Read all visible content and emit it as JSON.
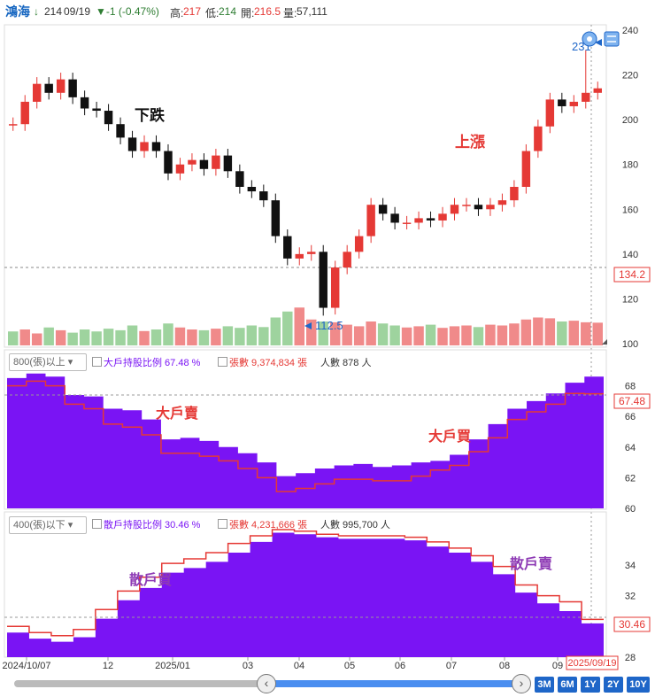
{
  "header": {
    "stock": "鴻海",
    "arrow": "↓",
    "price": "214",
    "date": "09/19",
    "change": "▼-1 (-0.47%)",
    "high_label": "高:",
    "high": "217",
    "low_label": "低:",
    "low": "214",
    "open_label": "開:",
    "open": "216.5",
    "vol_label": "量:",
    "volume": "57,111"
  },
  "annotations": {
    "down": "下跌",
    "up": "上漲",
    "big_sell": "大戶賣",
    "big_buy": "大戶買",
    "small_buy": "散戶買",
    "small_sell": "散戶賣"
  },
  "price_panel": {
    "high_marker": "231",
    "low_marker": "112.5",
    "ref_value": "134.2",
    "y_ticks": [
      "240",
      "220",
      "200",
      "180",
      "160",
      "140",
      "120",
      "100"
    ]
  },
  "big_panel": {
    "dropdown": "800(張)以上",
    "ratio_label": "大戶持股比例 67.48 %",
    "sheets_label": "張數 9,374,834 張",
    "people_label": "人數 878 人",
    "current": "67.48",
    "y_ticks": [
      "68",
      "66",
      "64",
      "62",
      "60"
    ]
  },
  "small_panel": {
    "dropdown": "400(張)以下",
    "ratio_label": "散戶持股比例 30.46 %",
    "sheets_label": "張數 4,231,666 張",
    "people_label": "人數 995,700 人",
    "current": "30.46",
    "y_ticks": [
      "34",
      "32",
      "30",
      "28"
    ]
  },
  "x_axis": {
    "ticks": [
      "2024/10/07",
      "12",
      "2025/01",
      "03",
      "04",
      "05",
      "06",
      "07",
      "08",
      "09"
    ],
    "current_date": "2025/09/19"
  },
  "range_buttons": [
    "3M",
    "6M",
    "1Y",
    "2Y",
    "10Y"
  ],
  "colors": {
    "up": "#e53935",
    "down": "#111111",
    "holding_fill": "#7a14f4",
    "holding_line": "#e53935",
    "accent": "#1e66c8"
  },
  "chart_data": [
    {
      "type": "candlestick",
      "name": "鴻海 daily price",
      "x_range": [
        "2024/10/07",
        "2025/09/19"
      ],
      "ylim": [
        100,
        240
      ],
      "x": [
        "2024/10/07",
        "2024/10/14",
        "2024/10/21",
        "2024/10/28",
        "2024/11/04",
        "2024/11/11",
        "2024/11/18",
        "2024/11/25",
        "2024/12/02",
        "2024/12/09",
        "2024/12/16",
        "2024/12/23",
        "2024/12/30",
        "2025/01/06",
        "2025/01/13",
        "2025/01/20",
        "2025/01/27",
        "2025/02/03",
        "2025/02/10",
        "2025/02/17",
        "2025/02/24",
        "2025/03/03",
        "2025/03/10",
        "2025/03/17",
        "2025/03/24",
        "2025/03/31",
        "2025/04/07",
        "2025/04/14",
        "2025/04/21",
        "2025/04/28",
        "2025/05/05",
        "2025/05/12",
        "2025/05/19",
        "2025/05/26",
        "2025/06/02",
        "2025/06/09",
        "2025/06/16",
        "2025/06/23",
        "2025/06/30",
        "2025/07/07",
        "2025/07/14",
        "2025/07/21",
        "2025/07/28",
        "2025/08/04",
        "2025/08/11",
        "2025/08/18",
        "2025/08/25",
        "2025/09/01",
        "2025/09/08",
        "2025/09/15"
      ],
      "close": [
        198,
        208,
        216,
        212,
        218,
        210,
        205,
        204,
        198,
        192,
        186,
        190,
        186,
        176,
        180,
        182,
        178,
        184,
        177,
        170,
        168,
        164,
        148,
        138,
        140,
        141,
        116,
        134,
        141,
        148,
        162,
        158,
        154,
        154,
        156,
        155,
        158,
        162,
        162,
        160,
        162,
        164,
        170,
        186,
        197,
        209,
        206,
        208,
        212,
        214
      ],
      "high_marker": 231,
      "low_marker": 112.5
    },
    {
      "type": "bar",
      "name": "volume",
      "note": "relative daily volume",
      "values": [
        35,
        40,
        30,
        45,
        38,
        32,
        40,
        35,
        42,
        38,
        50,
        36,
        40,
        55,
        45,
        40,
        38,
        42,
        48,
        44,
        50,
        46,
        70,
        85,
        95,
        65,
        60,
        58,
        52,
        48,
        60,
        55,
        50,
        45,
        48,
        52,
        44,
        48,
        50,
        46,
        52,
        50,
        55,
        65,
        70,
        68,
        60,
        62,
        58,
        57
      ]
    },
    {
      "type": "area",
      "name": "大戶持股比例 67.48 %",
      "ylim": [
        60,
        69
      ],
      "values": [
        68.5,
        68.8,
        68.6,
        67.4,
        67.3,
        66.5,
        66.4,
        65.8,
        64.5,
        64.6,
        64.4,
        64.0,
        63.6,
        63.0,
        62.1,
        62.3,
        62.6,
        62.8,
        62.9,
        62.7,
        62.8,
        63.0,
        63.1,
        63.5,
        64.5,
        65.5,
        66.5,
        67.0,
        67.5,
        68.2,
        68.6
      ],
      "series2": {
        "name": "張數 9,374,834 張",
        "values": [
          68.0,
          68.3,
          68.0,
          66.8,
          66.5,
          65.5,
          65.3,
          64.8,
          63.6,
          63.6,
          63.4,
          63.1,
          62.6,
          62.0,
          61.1,
          61.3,
          61.6,
          61.9,
          61.9,
          61.8,
          61.8,
          62.1,
          62.5,
          62.8,
          63.7,
          64.6,
          65.8,
          66.3,
          66.8,
          67.5,
          67.48
        ]
      }
    },
    {
      "type": "area",
      "name": "散戶持股比例 30.46 %",
      "ylim": [
        28,
        36
      ],
      "values": [
        29.6,
        29.2,
        29.0,
        29.3,
        30.5,
        31.7,
        32.5,
        33.5,
        33.8,
        34.2,
        34.8,
        35.5,
        36.1,
        36.0,
        35.8,
        35.7,
        35.7,
        35.7,
        35.6,
        35.2,
        34.8,
        34.2,
        33.4,
        32.2,
        31.5,
        31.0,
        30.2
      ],
      "series2": {
        "name": "張數 4,231,666 張",
        "values": [
          30.0,
          29.6,
          29.4,
          29.8,
          31.1,
          32.3,
          33.2,
          34.1,
          34.4,
          34.8,
          35.4,
          35.9,
          36.3,
          36.2,
          36.0,
          35.9,
          35.9,
          35.9,
          35.8,
          35.5,
          35.1,
          34.6,
          33.9,
          32.7,
          32.0,
          31.6,
          30.46
        ]
      }
    }
  ]
}
